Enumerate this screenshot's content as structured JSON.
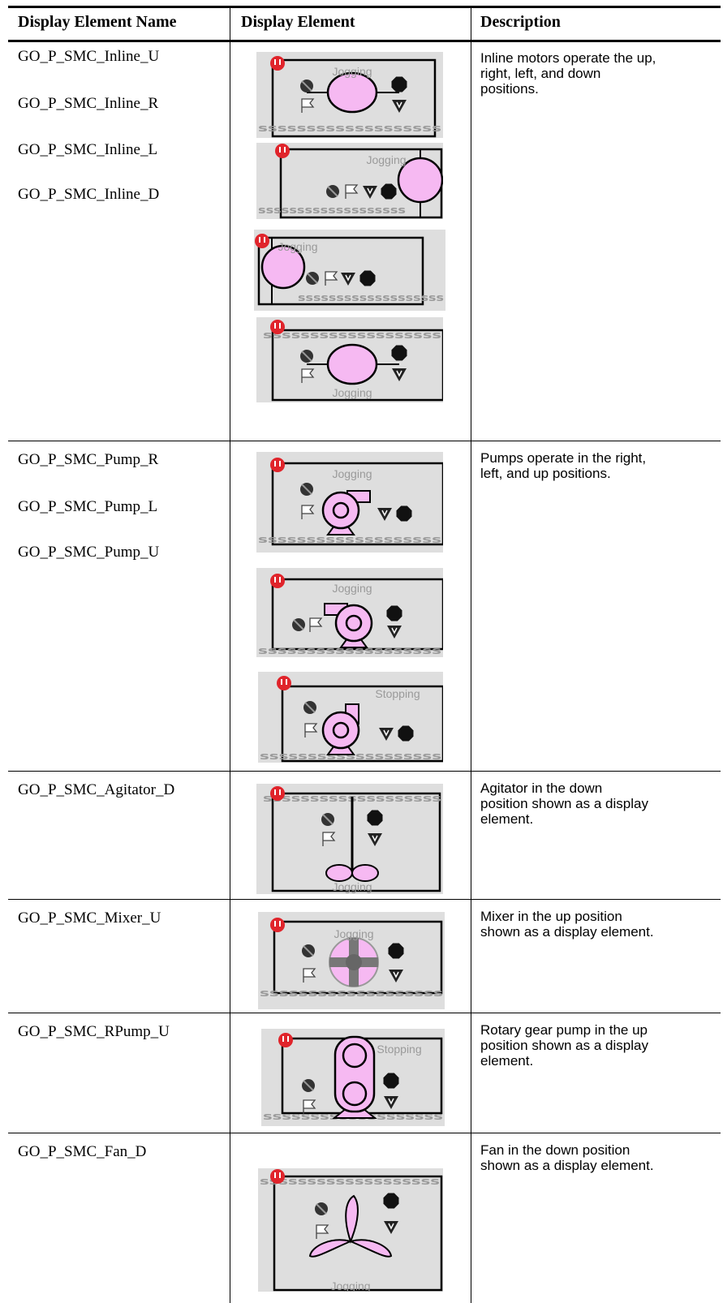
{
  "header": {
    "col1": "Display Element Name",
    "col2": "Display Element",
    "col3": "Description"
  },
  "icon_strip": "sssssssssssssssssss",
  "rows": [
    {
      "names": [
        "GO_P_SMC_Inline_U",
        "GO_P_SMC_Inline_R",
        "GO_P_SMC_Inline_L",
        "GO_P_SMC_Inline_D"
      ],
      "description": [
        "Inline motors operate the up,",
        "right, left, and down",
        "positions."
      ],
      "images": [
        {
          "status": "Jogging"
        },
        {
          "status": "Jogging"
        },
        {
          "status": "Jogging"
        },
        {
          "status": "Jogging"
        }
      ]
    },
    {
      "names": [
        "GO_P_SMC_Pump_R",
        "GO_P_SMC_Pump_L",
        "GO_P_SMC_Pump_U"
      ],
      "description": [
        "Pumps operate in the right,",
        "left, and up positions."
      ],
      "images": [
        {
          "status": "Jogging"
        },
        {
          "status": "Jogging"
        },
        {
          "status": "Stopping"
        }
      ]
    },
    {
      "names": [
        "GO_P_SMC_Agitator_D"
      ],
      "description": [
        "Agitator in the down",
        "position shown as a display",
        "element."
      ],
      "images": [
        {
          "status": "Jogging"
        }
      ]
    },
    {
      "names": [
        "GO_P_SMC_Mixer_U"
      ],
      "description": [
        "Mixer in the up position",
        "shown as a display element."
      ],
      "images": [
        {
          "status": "Jogging"
        }
      ]
    },
    {
      "names": [
        "GO_P_SMC_RPump_U"
      ],
      "description": [
        "Rotary gear pump in the up",
        "position shown as a display",
        "element."
      ],
      "images": [
        {
          "status": "Stopping"
        }
      ]
    },
    {
      "names": [
        "GO_P_SMC_Fan_D"
      ],
      "description": [
        "Fan in the down position",
        "shown as a display element."
      ],
      "images": [
        {
          "status": "Jogging"
        }
      ]
    }
  ]
}
